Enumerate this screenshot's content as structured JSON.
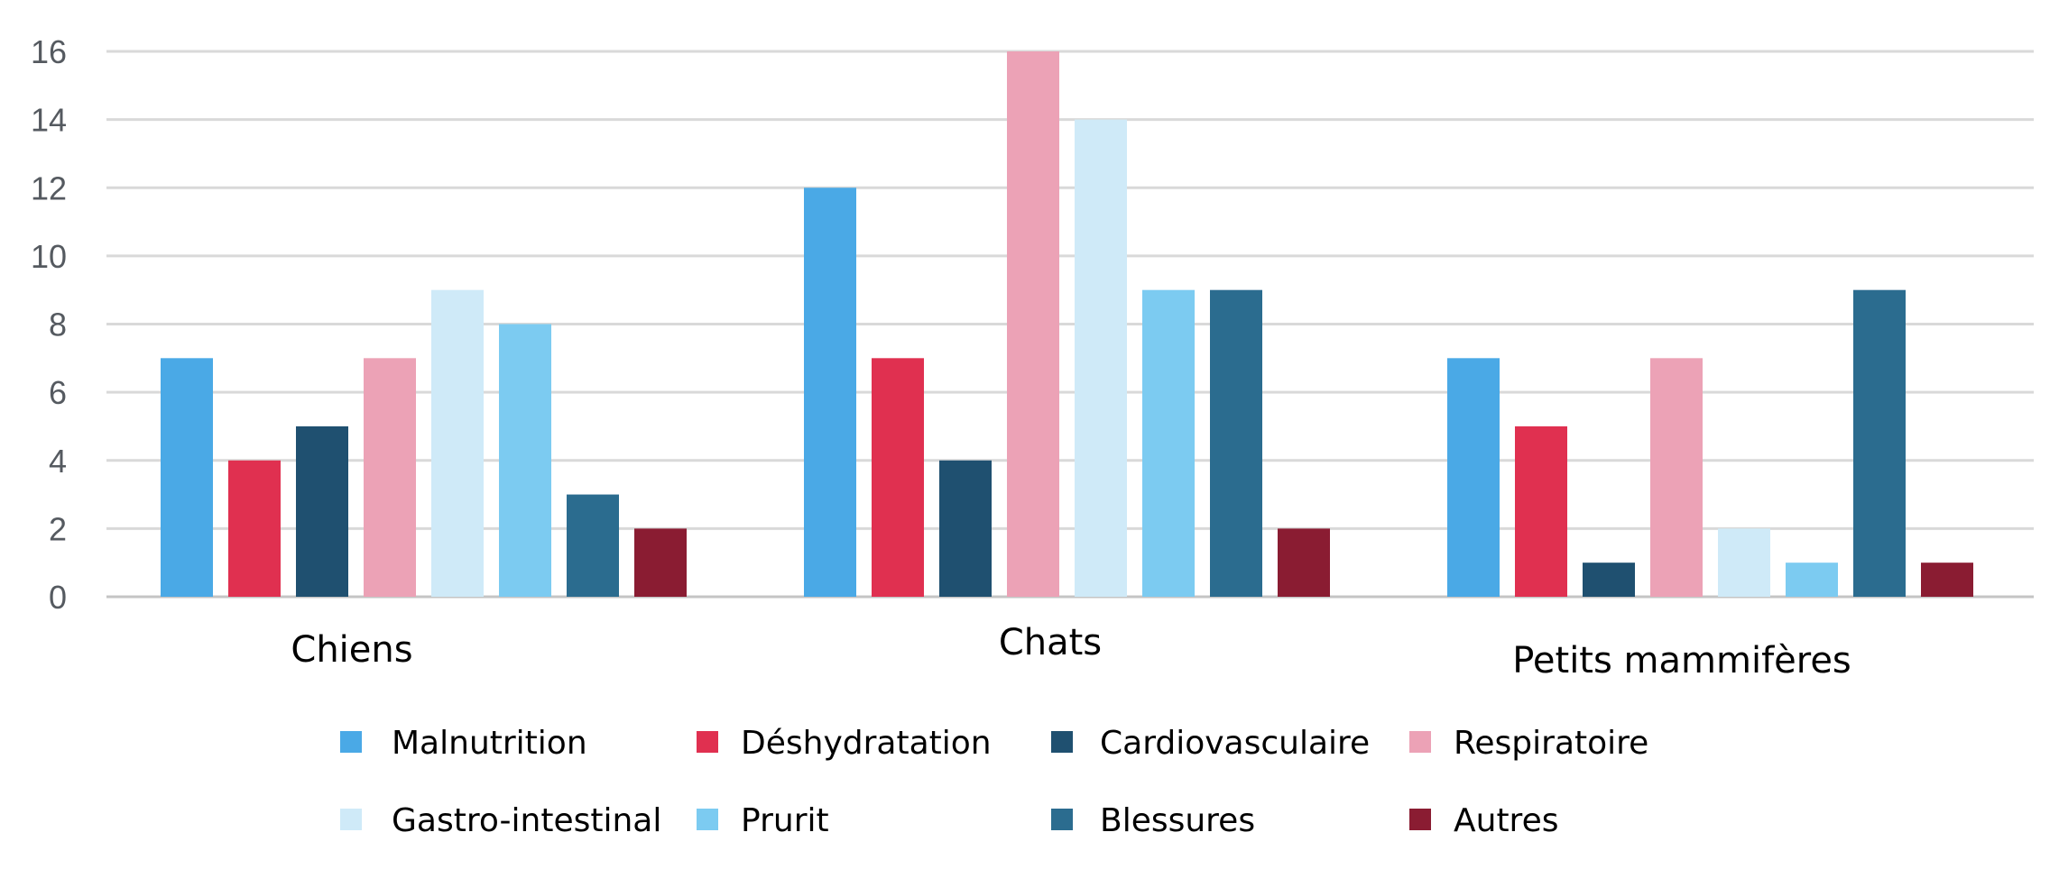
{
  "chart_data": {
    "type": "bar",
    "title": "",
    "xlabel": "",
    "ylabel": "",
    "ylim": [
      0,
      16
    ],
    "yticks": [
      0,
      2,
      4,
      6,
      8,
      10,
      12,
      14,
      16
    ],
    "grid": true,
    "legend_position": "bottom",
    "categories": [
      "Chiens",
      "Chats",
      "Petits mammifères"
    ],
    "series": [
      {
        "name": "Malnutrition",
        "color": "#4aa9e6",
        "values": [
          7,
          12,
          7
        ]
      },
      {
        "name": "Déshydratation",
        "color": "#e03050",
        "values": [
          4,
          7,
          5
        ]
      },
      {
        "name": "Cardiovasculaire",
        "color": "#1f5070",
        "values": [
          5,
          4,
          1
        ]
      },
      {
        "name": "Respiratoire",
        "color": "#eca2b6",
        "values": [
          7,
          16,
          7
        ]
      },
      {
        "name": "Gastro-intestinal",
        "color": "#cfeaf8",
        "values": [
          9,
          14,
          2
        ]
      },
      {
        "name": "Prurit",
        "color": "#7ccbf1",
        "values": [
          8,
          9,
          1
        ]
      },
      {
        "name": "Blessures",
        "color": "#2b6c8f",
        "values": [
          3,
          9,
          9
        ]
      },
      {
        "name": "Autres",
        "color": "#8a1c32",
        "values": [
          2,
          2,
          1
        ]
      }
    ]
  }
}
